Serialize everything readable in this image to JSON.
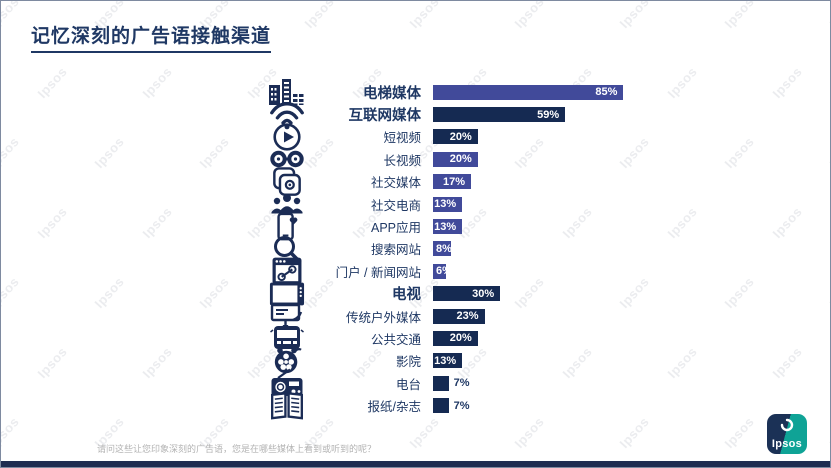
{
  "slide": {
    "title": "记忆深刻的广告语接触渠道",
    "footnote": "请问这些让您印象深刻的广告语，您是在哪些媒体上看到或听到的呢？",
    "watermark": "Ipsos",
    "logo_text": "Ipsos"
  },
  "colors": {
    "navy": "#152a52",
    "indigo": "#414a9a",
    "title_text": "#1f3864",
    "label_text": "#1f3864",
    "footnote_text": "#b3b3b3",
    "icon": "#1b2c55",
    "logo_blue": "#1b3156",
    "logo_teal": "#0fa396",
    "bottom_strip": "#1f2c50"
  },
  "chart_data": {
    "type": "bar",
    "orientation": "horizontal",
    "title": "记忆深刻的广告语接触渠道",
    "unit": "%",
    "xlim": [
      0,
      100
    ],
    "grid": false,
    "legend": "none",
    "categories": [
      "电梯媒体",
      "互联网媒体",
      "短视频",
      "长视频",
      "社交媒体",
      "社交电商",
      "APP应用",
      "搜索网站",
      "门户 / 新闻网站",
      "电视",
      "传统户外媒体",
      "公共交通",
      "影院",
      "电台",
      "报纸/杂志"
    ],
    "values": [
      85,
      59,
      20,
      20,
      17,
      13,
      13,
      8,
      6,
      30,
      23,
      20,
      13,
      7,
      7
    ],
    "rows": [
      {
        "label": "电梯媒体",
        "value": 85,
        "value_label": "85%",
        "bold": true,
        "color": "indigo",
        "icon": "buildings-icon",
        "value_label_position": "inside-right"
      },
      {
        "label": "互联网媒体",
        "value": 59,
        "value_label": "59%",
        "bold": true,
        "color": "navy",
        "icon": "wifi-icon",
        "value_label_position": "inside-right"
      },
      {
        "label": "短视频",
        "value": 20,
        "value_label": "20%",
        "bold": false,
        "color": "navy",
        "icon": "play-circle-icon",
        "value_label_position": "inside-right"
      },
      {
        "label": "长视频",
        "value": 20,
        "value_label": "20%",
        "bold": false,
        "color": "indigo",
        "icon": "film-reels-icon",
        "value_label_position": "inside-right"
      },
      {
        "label": "社交媒体",
        "value": 17,
        "value_label": "17%",
        "bold": false,
        "color": "indigo",
        "icon": "social-apps-icon",
        "value_label_position": "inside-right"
      },
      {
        "label": "社交电商",
        "value": 13,
        "value_label": "13%",
        "bold": false,
        "color": "indigo",
        "icon": "people-group-icon",
        "value_label_position": "inside-right"
      },
      {
        "label": "APP应用",
        "value": 13,
        "value_label": "13%",
        "bold": false,
        "color": "indigo",
        "icon": "phone-app-icon",
        "value_label_position": "inside-right"
      },
      {
        "label": "搜索网站",
        "value": 8,
        "value_label": "8%",
        "bold": false,
        "color": "indigo",
        "icon": "search-icon",
        "value_label_position": "inside-left"
      },
      {
        "label": "门户 / 新闻网站",
        "value": 6,
        "value_label": "6%",
        "bold": false,
        "color": "indigo",
        "icon": "browser-link-icon",
        "value_label_position": "inside-left"
      },
      {
        "label": "电视",
        "value": 30,
        "value_label": "30%",
        "bold": true,
        "color": "navy",
        "icon": "tv-icon",
        "value_label_position": "inside-right"
      },
      {
        "label": "传统户外媒体",
        "value": 23,
        "value_label": "23%",
        "bold": false,
        "color": "navy",
        "icon": "billboard-icon",
        "value_label_position": "inside-right"
      },
      {
        "label": "公共交通",
        "value": 20,
        "value_label": "20%",
        "bold": false,
        "color": "navy",
        "icon": "bus-icon",
        "value_label_position": "inside-right"
      },
      {
        "label": "影院",
        "value": 13,
        "value_label": "13%",
        "bold": false,
        "color": "navy",
        "icon": "film-reel-icon",
        "value_label_position": "inside-right"
      },
      {
        "label": "电台",
        "value": 7,
        "value_label": "7%",
        "bold": false,
        "color": "navy",
        "icon": "radio-icon",
        "value_label_position": "outside"
      },
      {
        "label": "报纸/杂志",
        "value": 7,
        "value_label": "7%",
        "bold": false,
        "color": "navy",
        "icon": "open-book-icon",
        "value_label_position": "outside"
      }
    ]
  }
}
